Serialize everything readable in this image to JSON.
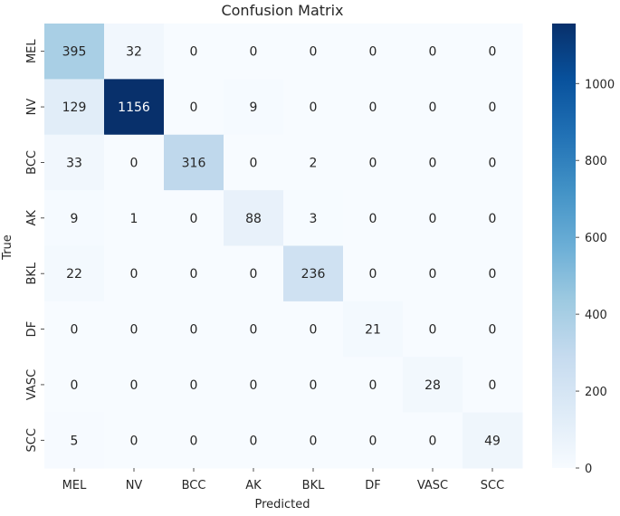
{
  "chart_data": {
    "type": "heatmap",
    "title": "Confusion Matrix",
    "xlabel": "Predicted",
    "ylabel": "True",
    "x_categories": [
      "MEL",
      "NV",
      "BCC",
      "AK",
      "BKL",
      "DF",
      "VASC",
      "SCC"
    ],
    "y_categories": [
      "MEL",
      "NV",
      "BCC",
      "AK",
      "BKL",
      "DF",
      "VASC",
      "SCC"
    ],
    "values": [
      [
        395,
        32,
        0,
        0,
        0,
        0,
        0,
        0
      ],
      [
        129,
        1156,
        0,
        9,
        0,
        0,
        0,
        0
      ],
      [
        33,
        0,
        316,
        0,
        2,
        0,
        0,
        0
      ],
      [
        9,
        1,
        0,
        88,
        3,
        0,
        0,
        0
      ],
      [
        22,
        0,
        0,
        0,
        236,
        0,
        0,
        0
      ],
      [
        0,
        0,
        0,
        0,
        0,
        21,
        0,
        0
      ],
      [
        0,
        0,
        0,
        0,
        0,
        0,
        28,
        0
      ],
      [
        5,
        0,
        0,
        0,
        0,
        0,
        0,
        49
      ]
    ],
    "colormap": "Blues",
    "color_range": [
      0,
      1156
    ],
    "colorbar_ticks": [
      0,
      200,
      400,
      600,
      800,
      1000
    ],
    "colorbar_tick_labels": [
      "0",
      "200",
      "400",
      "600",
      "800",
      "1000"
    ],
    "colorbar_position": "right",
    "grid": false
  }
}
